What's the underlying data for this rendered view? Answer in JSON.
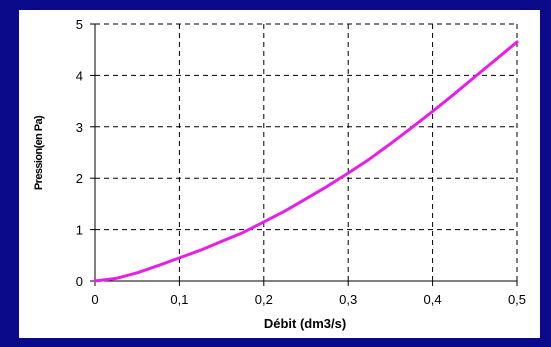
{
  "colors": {
    "background": "#0a0a8a",
    "panel": "#ffffff",
    "curve": "#e81ee8",
    "grid": "#000000"
  },
  "chart_data": {
    "type": "line",
    "xlabel": "Débit (dm3/s)",
    "ylabel": "Pression(en Pa)",
    "xlim": [
      0,
      0.5
    ],
    "ylim": [
      0,
      5
    ],
    "xticks": [
      0,
      0.1,
      0.2,
      0.3,
      0.4,
      0.5
    ],
    "yticks": [
      0,
      1,
      2,
      3,
      4,
      5
    ],
    "x_tick_labels": [
      "0",
      "0,1",
      "0,2",
      "0,3",
      "0,4",
      "0,5"
    ],
    "y_tick_labels": [
      "0",
      "1",
      "2",
      "3",
      "4",
      "5"
    ],
    "grid": true,
    "grid_style": "dashed",
    "legend": "none",
    "series": [
      {
        "color": "#e81ee8",
        "x": [
          0,
          0.025,
          0.05,
          0.075,
          0.1,
          0.125,
          0.15,
          0.175,
          0.2,
          0.225,
          0.25,
          0.275,
          0.3,
          0.325,
          0.35,
          0.375,
          0.4,
          0.425,
          0.45,
          0.475,
          0.5
        ],
        "y": [
          0,
          0.05,
          0.16,
          0.3,
          0.45,
          0.6,
          0.77,
          0.94,
          1.15,
          1.36,
          1.6,
          1.84,
          2.1,
          2.37,
          2.67,
          2.98,
          3.3,
          3.63,
          3.97,
          4.31,
          4.65
        ]
      }
    ]
  }
}
